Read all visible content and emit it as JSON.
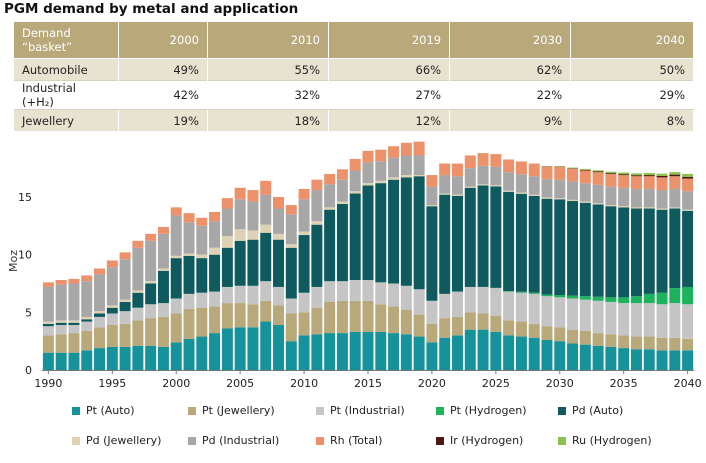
{
  "title": "PGM demand by metal and application",
  "table": {
    "header": [
      "Demand “basket”",
      "2000",
      "2010",
      "2019",
      "2030",
      "2040"
    ],
    "rows": [
      {
        "label": "Automobile",
        "values": [
          "49%",
          "55%",
          "66%",
          "62%",
          "50%"
        ]
      },
      {
        "label": "Industrial (+H₂)",
        "values": [
          "42%",
          "32%",
          "27%",
          "22%",
          "29%"
        ]
      },
      {
        "label": "Jewellery",
        "values": [
          "19%",
          "18%",
          "12%",
          "9%",
          "8%"
        ]
      }
    ]
  },
  "chart_data": {
    "type": "bar",
    "stacked": true,
    "ylabel": "Moz",
    "ylim": [
      0,
      18.9
    ],
    "yticks": [
      0,
      5,
      10,
      15
    ],
    "xticks": [
      1990,
      1995,
      2000,
      2005,
      2010,
      2015,
      2020,
      2025,
      2030,
      2035,
      2040
    ],
    "x": [
      1990,
      1991,
      1992,
      1993,
      1994,
      1995,
      1996,
      1997,
      1998,
      1999,
      2000,
      2001,
      2002,
      2003,
      2004,
      2005,
      2006,
      2007,
      2008,
      2009,
      2010,
      2011,
      2012,
      2013,
      2014,
      2015,
      2016,
      2017,
      2018,
      2019,
      2020,
      2021,
      2022,
      2023,
      2024,
      2025,
      2026,
      2027,
      2028,
      2029,
      2030,
      2031,
      2032,
      2033,
      2034,
      2035,
      2036,
      2037,
      2038,
      2039,
      2040
    ],
    "series": [
      {
        "name": "Pt (Auto)",
        "color": "#16939a",
        "values": [
          1.5,
          1.5,
          1.5,
          1.7,
          1.9,
          2.0,
          2.0,
          2.1,
          2.1,
          2.0,
          2.4,
          2.7,
          2.9,
          3.2,
          3.6,
          3.7,
          3.7,
          4.2,
          3.9,
          2.5,
          3.0,
          3.1,
          3.2,
          3.2,
          3.3,
          3.3,
          3.3,
          3.2,
          3.1,
          2.9,
          2.4,
          2.8,
          3.0,
          3.5,
          3.5,
          3.3,
          3.0,
          2.9,
          2.8,
          2.6,
          2.5,
          2.3,
          2.2,
          2.1,
          2.0,
          1.9,
          1.8,
          1.8,
          1.7,
          1.7,
          1.7
        ]
      },
      {
        "name": "Pt (Jewellery)",
        "color": "#b8a87a",
        "values": [
          1.5,
          1.6,
          1.7,
          1.7,
          1.8,
          1.9,
          2.0,
          2.2,
          2.4,
          2.6,
          2.5,
          2.6,
          2.5,
          2.3,
          2.2,
          2.1,
          2.0,
          1.8,
          1.7,
          2.4,
          2.0,
          2.3,
          2.7,
          2.8,
          2.7,
          2.7,
          2.4,
          2.3,
          2.1,
          1.9,
          1.6,
          1.7,
          1.6,
          1.5,
          1.4,
          1.4,
          1.3,
          1.3,
          1.2,
          1.2,
          1.2,
          1.2,
          1.2,
          1.1,
          1.1,
          1.1,
          1.1,
          1.1,
          1.1,
          1.1,
          1.0
        ]
      },
      {
        "name": "Pt (Industrial)",
        "color": "#c5c5c5",
        "values": [
          0.8,
          0.8,
          0.7,
          0.8,
          0.9,
          1.0,
          1.1,
          1.1,
          1.2,
          1.2,
          1.3,
          1.3,
          1.3,
          1.3,
          1.4,
          1.5,
          1.6,
          1.7,
          1.6,
          1.3,
          1.7,
          1.8,
          1.8,
          1.7,
          1.8,
          1.8,
          1.9,
          2.0,
          2.1,
          2.2,
          2.0,
          2.1,
          2.2,
          2.2,
          2.3,
          2.4,
          2.5,
          2.5,
          2.6,
          2.6,
          2.6,
          2.7,
          2.7,
          2.8,
          2.8,
          2.8,
          2.9,
          2.9,
          2.9,
          3.0,
          3.0
        ]
      },
      {
        "name": "Pt (Hydrogen)",
        "color": "#1db35c",
        "values": [
          0,
          0,
          0,
          0,
          0,
          0,
          0,
          0,
          0,
          0,
          0,
          0,
          0,
          0,
          0,
          0,
          0,
          0,
          0,
          0,
          0,
          0,
          0,
          0,
          0,
          0,
          0,
          0,
          0,
          0,
          0,
          0,
          0,
          0,
          0,
          0.02,
          0.05,
          0.08,
          0.1,
          0.15,
          0.2,
          0.25,
          0.3,
          0.35,
          0.4,
          0.5,
          0.6,
          0.8,
          1.0,
          1.3,
          1.5
        ]
      },
      {
        "name": "Pd (Auto)",
        "color": "#0e5a5e",
        "values": [
          0.2,
          0.2,
          0.2,
          0.2,
          0.3,
          0.5,
          0.8,
          1.3,
          1.8,
          2.8,
          3.5,
          3.3,
          3.0,
          3.2,
          3.4,
          3.9,
          4.0,
          4.2,
          4.1,
          4.4,
          5.0,
          5.4,
          6.2,
          6.7,
          7.5,
          8.2,
          8.6,
          9.0,
          9.4,
          9.8,
          8.2,
          8.6,
          8.3,
          8.6,
          8.8,
          8.8,
          8.6,
          8.5,
          8.4,
          8.3,
          8.3,
          8.2,
          8.1,
          8.0,
          7.9,
          7.8,
          7.6,
          7.4,
          7.2,
          6.9,
          6.6
        ]
      },
      {
        "name": "Pd (Jewellery)",
        "color": "#ddd3b4",
        "values": [
          0.2,
          0.2,
          0.2,
          0.2,
          0.2,
          0.2,
          0.2,
          0.2,
          0.2,
          0.2,
          0.2,
          0.2,
          0.3,
          0.6,
          1.0,
          1.0,
          0.8,
          0.7,
          0.5,
          0.3,
          0.3,
          0.3,
          0.2,
          0.2,
          0.2,
          0.2,
          0.2,
          0.2,
          0.2,
          0.1,
          0.1,
          0.1,
          0.1,
          0.1,
          0.1,
          0.1,
          0.1,
          0.1,
          0.1,
          0.1,
          0.1,
          0.1,
          0.1,
          0.1,
          0.1,
          0.1,
          0.1,
          0.1,
          0.1,
          0.1,
          0.1
        ]
      },
      {
        "name": "Pd (Industrial)",
        "color": "#a7a7a7",
        "values": [
          3.0,
          3.1,
          3.2,
          3.1,
          3.2,
          3.3,
          3.5,
          3.7,
          3.5,
          3.0,
          3.5,
          2.7,
          2.5,
          2.3,
          2.4,
          2.6,
          2.5,
          2.6,
          2.2,
          2.6,
          2.8,
          2.7,
          2.0,
          1.9,
          1.8,
          1.8,
          1.7,
          1.7,
          1.7,
          1.7,
          1.6,
          1.6,
          1.6,
          1.6,
          1.6,
          1.6,
          1.6,
          1.6,
          1.6,
          1.6,
          1.6,
          1.6,
          1.6,
          1.6,
          1.6,
          1.6,
          1.6,
          1.6,
          1.6,
          1.6,
          1.6
        ]
      },
      {
        "name": "Rh (Total)",
        "color": "#ec916a",
        "values": [
          0.4,
          0.4,
          0.4,
          0.5,
          0.5,
          0.6,
          0.6,
          0.6,
          0.6,
          0.6,
          0.7,
          0.8,
          0.7,
          0.8,
          0.9,
          1.0,
          1.0,
          1.2,
          1.0,
          0.8,
          0.9,
          0.9,
          0.9,
          0.9,
          1.0,
          1.0,
          1.0,
          1.0,
          1.1,
          1.2,
          1.0,
          1.0,
          1.1,
          1.1,
          1.1,
          1.1,
          1.1,
          1.1,
          1.1,
          1.1,
          1.1,
          1.1,
          1.1,
          1.1,
          1.1,
          1.1,
          1.1,
          1.1,
          1.1,
          1.1,
          1.1
        ]
      },
      {
        "name": "Ir (Hydrogen)",
        "color": "#4a1a14",
        "values": [
          0,
          0,
          0,
          0,
          0,
          0,
          0,
          0,
          0,
          0,
          0,
          0,
          0,
          0,
          0,
          0,
          0,
          0,
          0,
          0,
          0,
          0,
          0,
          0,
          0,
          0,
          0,
          0,
          0,
          0,
          0,
          0,
          0,
          0,
          0,
          0,
          0,
          0,
          0,
          0.02,
          0.03,
          0.04,
          0.05,
          0.06,
          0.07,
          0.08,
          0.09,
          0.1,
          0.12,
          0.14,
          0.15
        ]
      },
      {
        "name": "Ru (Hydrogen)",
        "color": "#8cc34a",
        "values": [
          0,
          0,
          0,
          0,
          0,
          0,
          0,
          0,
          0,
          0,
          0,
          0,
          0,
          0,
          0,
          0,
          0,
          0,
          0,
          0,
          0,
          0,
          0,
          0,
          0,
          0,
          0,
          0,
          0,
          0,
          0,
          0,
          0,
          0,
          0,
          0,
          0,
          0,
          0,
          0.02,
          0.04,
          0.06,
          0.08,
          0.1,
          0.12,
          0.14,
          0.16,
          0.18,
          0.2,
          0.22,
          0.25
        ]
      }
    ]
  }
}
